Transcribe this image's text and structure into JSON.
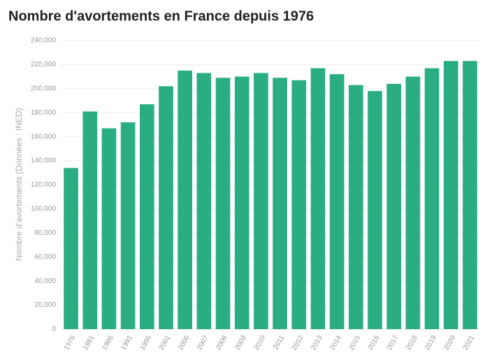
{
  "chart_data": {
    "type": "bar",
    "title": "Nombre d'avortements en France depuis 1976",
    "y_label": "Nombre d'avortements (Données : INED)",
    "categories": [
      "1976",
      "1981",
      "1986",
      "1991",
      "1996",
      "2001",
      "2006",
      "2007",
      "2008",
      "2009",
      "2010",
      "2011",
      "2012",
      "2013",
      "2014",
      "2015",
      "2016",
      "2017",
      "2018",
      "2019",
      "2020",
      "2021"
    ],
    "values": [
      134000,
      181000,
      167000,
      172000,
      187000,
      202000,
      215000,
      213000,
      209000,
      210000,
      213000,
      209000,
      207000,
      217000,
      212000,
      203000,
      198000,
      204000,
      210000,
      217000,
      223000,
      223000
    ],
    "color": "#2bad84",
    "ylim": [
      0,
      240000
    ],
    "yticks": [
      0,
      {
        "value": 20000,
        "label": "20,000"
      },
      {
        "value": 40000,
        "label": "40,000"
      },
      {
        "value": 60000,
        "label": "60,000"
      },
      {
        "value": 80000,
        "label": "80,000"
      },
      {
        "value": 100000,
        "label": "100,000"
      },
      {
        "value": 120000,
        "label": "120,000"
      },
      {
        "value": 140000,
        "label": "140,000"
      },
      {
        "value": 160000,
        "label": "160,000"
      },
      {
        "value": 180000,
        "label": "180,000"
      },
      {
        "value": 200000,
        "label": "200,000"
      },
      {
        "value": 220000,
        "label": "220,000"
      },
      {
        "value": 240000,
        "label": "240,000"
      }
    ],
    "grid": true
  }
}
